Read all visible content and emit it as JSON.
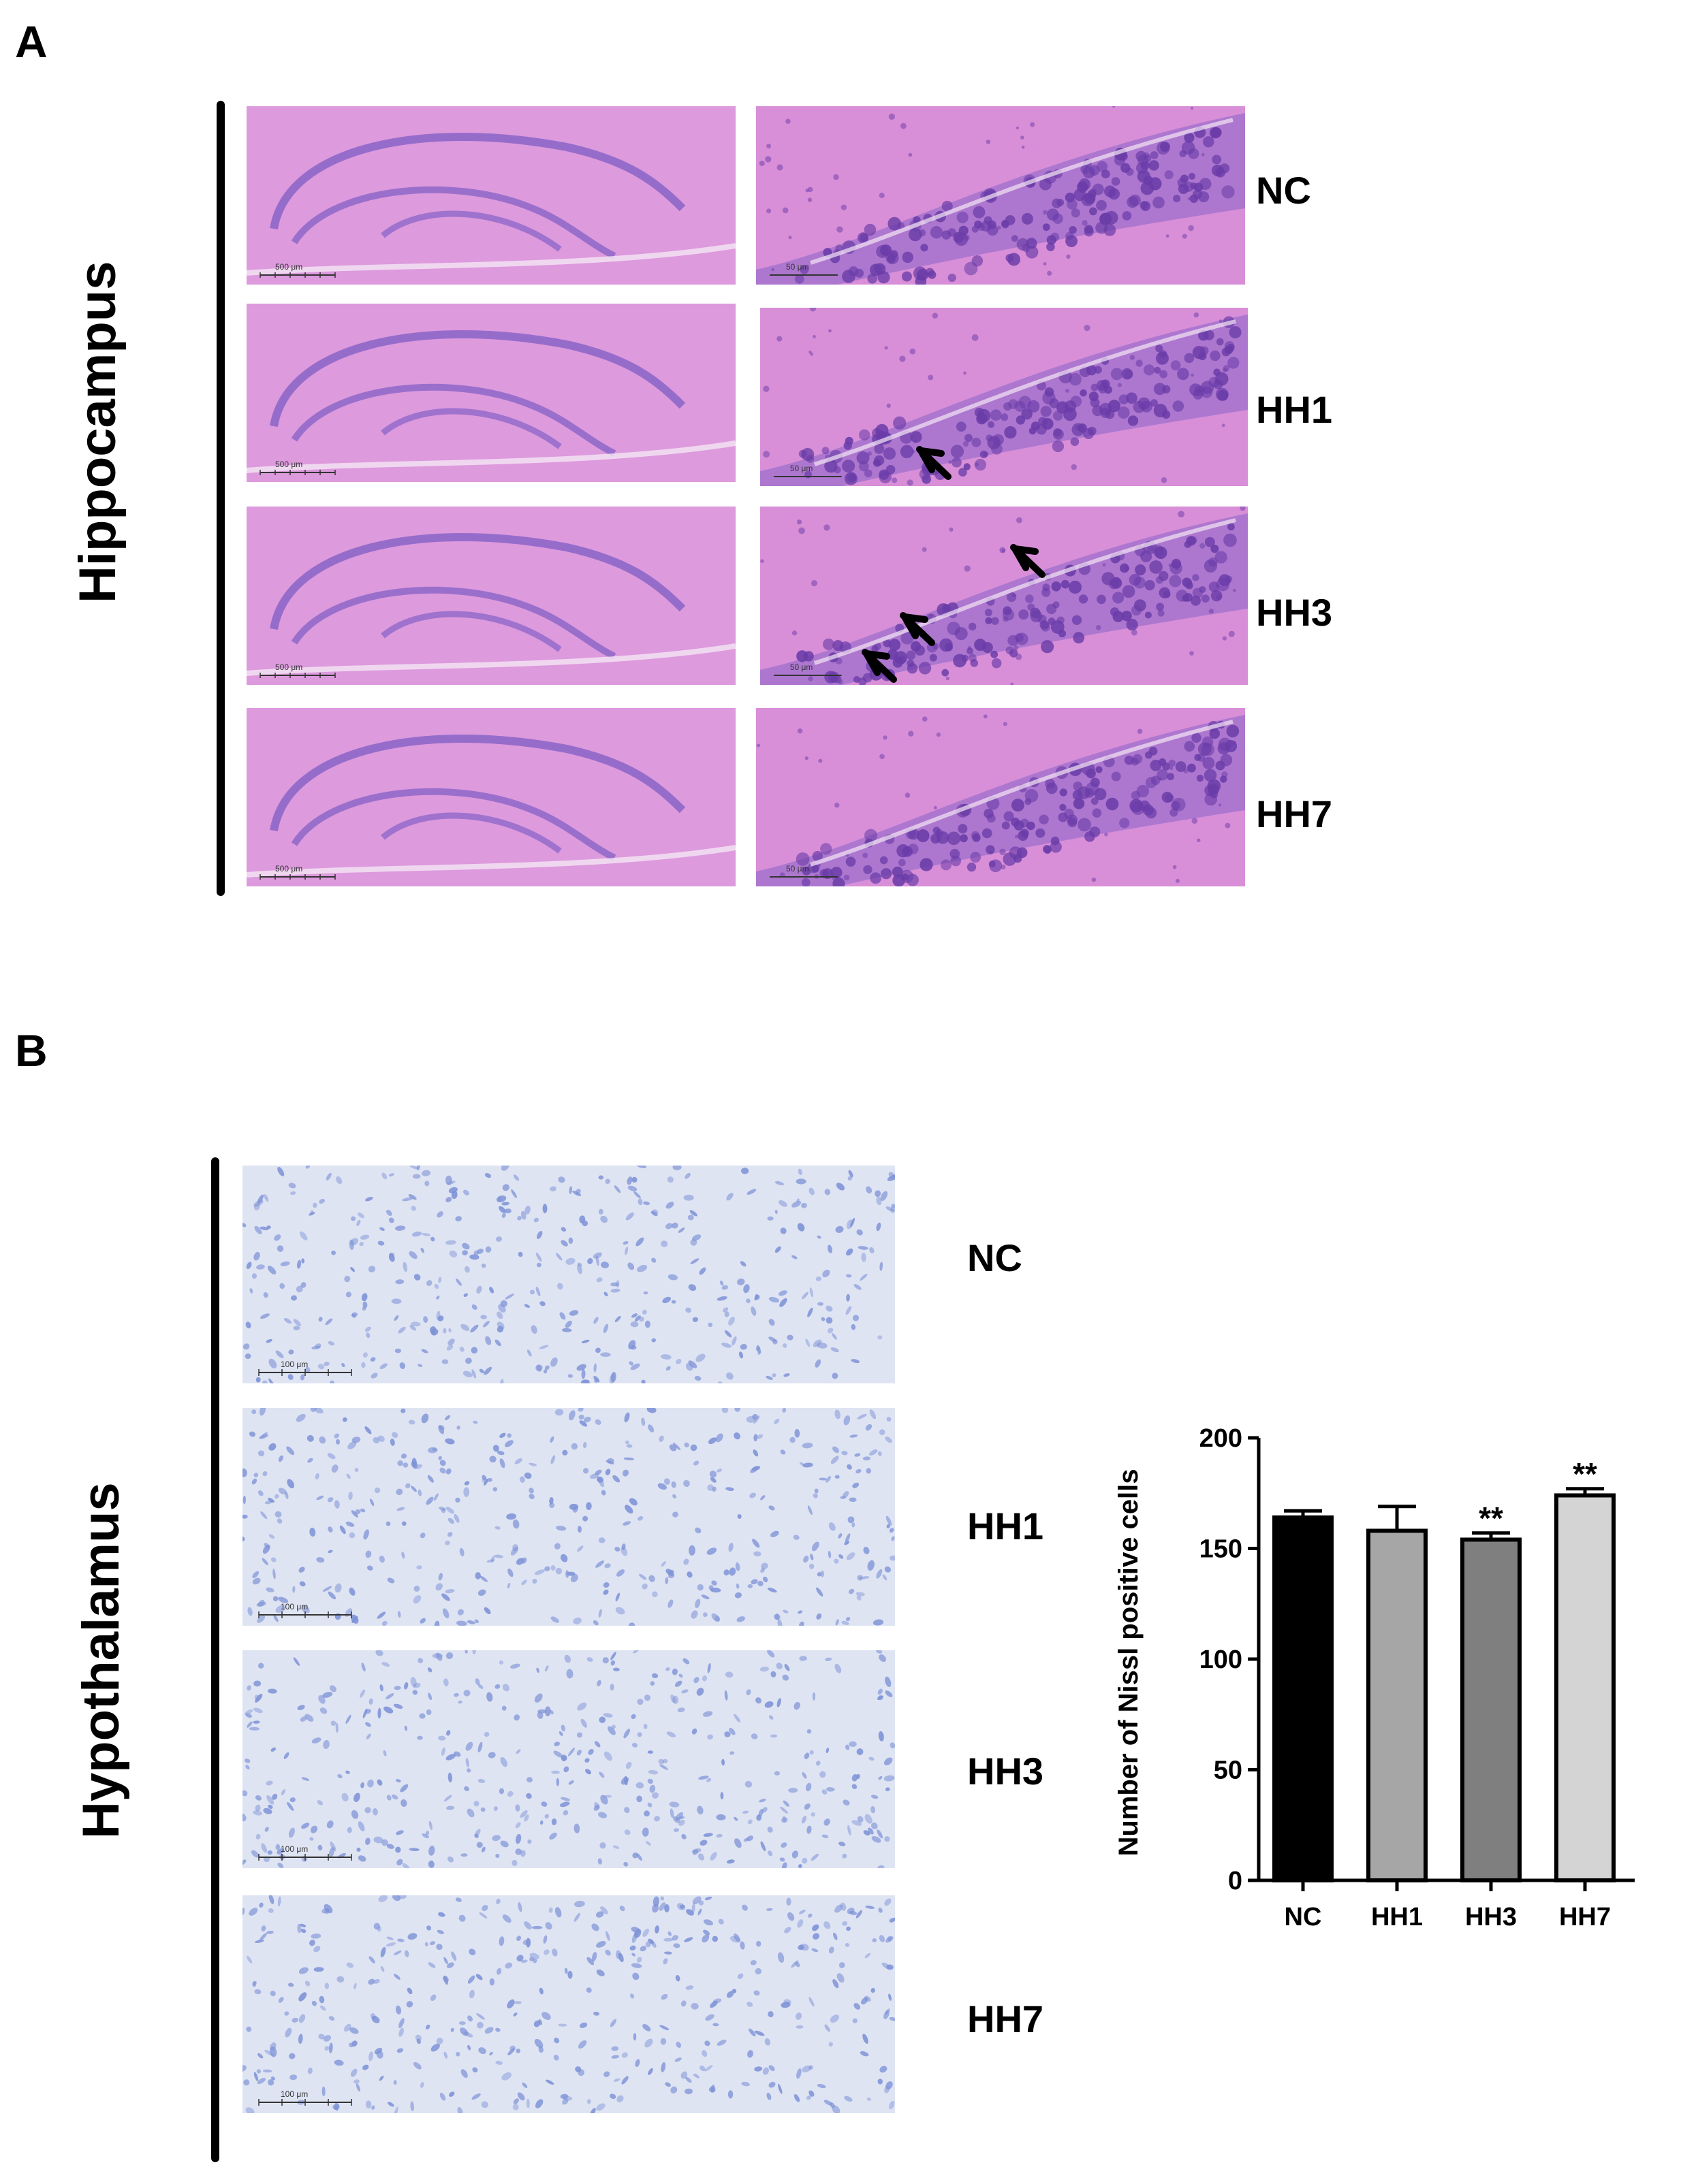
{
  "panelA": {
    "letter": "A",
    "region": "Hippocampus",
    "groups": [
      "NC",
      "HH1",
      "HH3",
      "HH7"
    ],
    "scale_low": "500 μm",
    "scale_high": "50 μm",
    "colors": {
      "he_bg": "#d88fd8",
      "he_layer": "#8a64c8",
      "he_dark": "#6a3ca8"
    }
  },
  "panelB": {
    "letter": "B",
    "region": "Hypothalamus",
    "groups": [
      "NC",
      "HH1",
      "HH3",
      "HH7"
    ],
    "scale": "100 μm",
    "colors": {
      "nissl_bg": "#dfe4f3",
      "nissl_cell": "#7d92d6"
    }
  },
  "chart_data": {
    "type": "bar",
    "categories": [
      "NC",
      "HH1",
      "HH3",
      "HH7"
    ],
    "values": [
      164,
      158,
      154,
      174
    ],
    "errors": [
      3,
      11,
      3,
      3
    ],
    "significance": [
      "",
      "",
      "**",
      "**"
    ],
    "bar_colors": [
      "#000000",
      "#a6a6a6",
      "#7f7f7f",
      "#d4d4d4"
    ],
    "ylabel": "Number of Nissl positive cells",
    "xlabel": "",
    "ylim": [
      0,
      200
    ],
    "yticks": [
      0,
      50,
      100,
      150,
      200
    ],
    "grid": false,
    "legend": "none"
  }
}
